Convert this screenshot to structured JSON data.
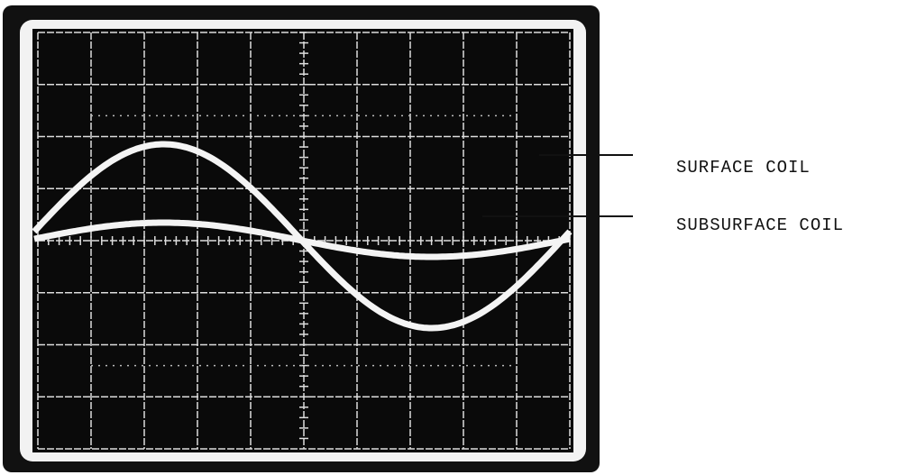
{
  "labels": {
    "surface": "SURFACE COIL",
    "subsurface": "SUBSURFACE COIL"
  }
}
